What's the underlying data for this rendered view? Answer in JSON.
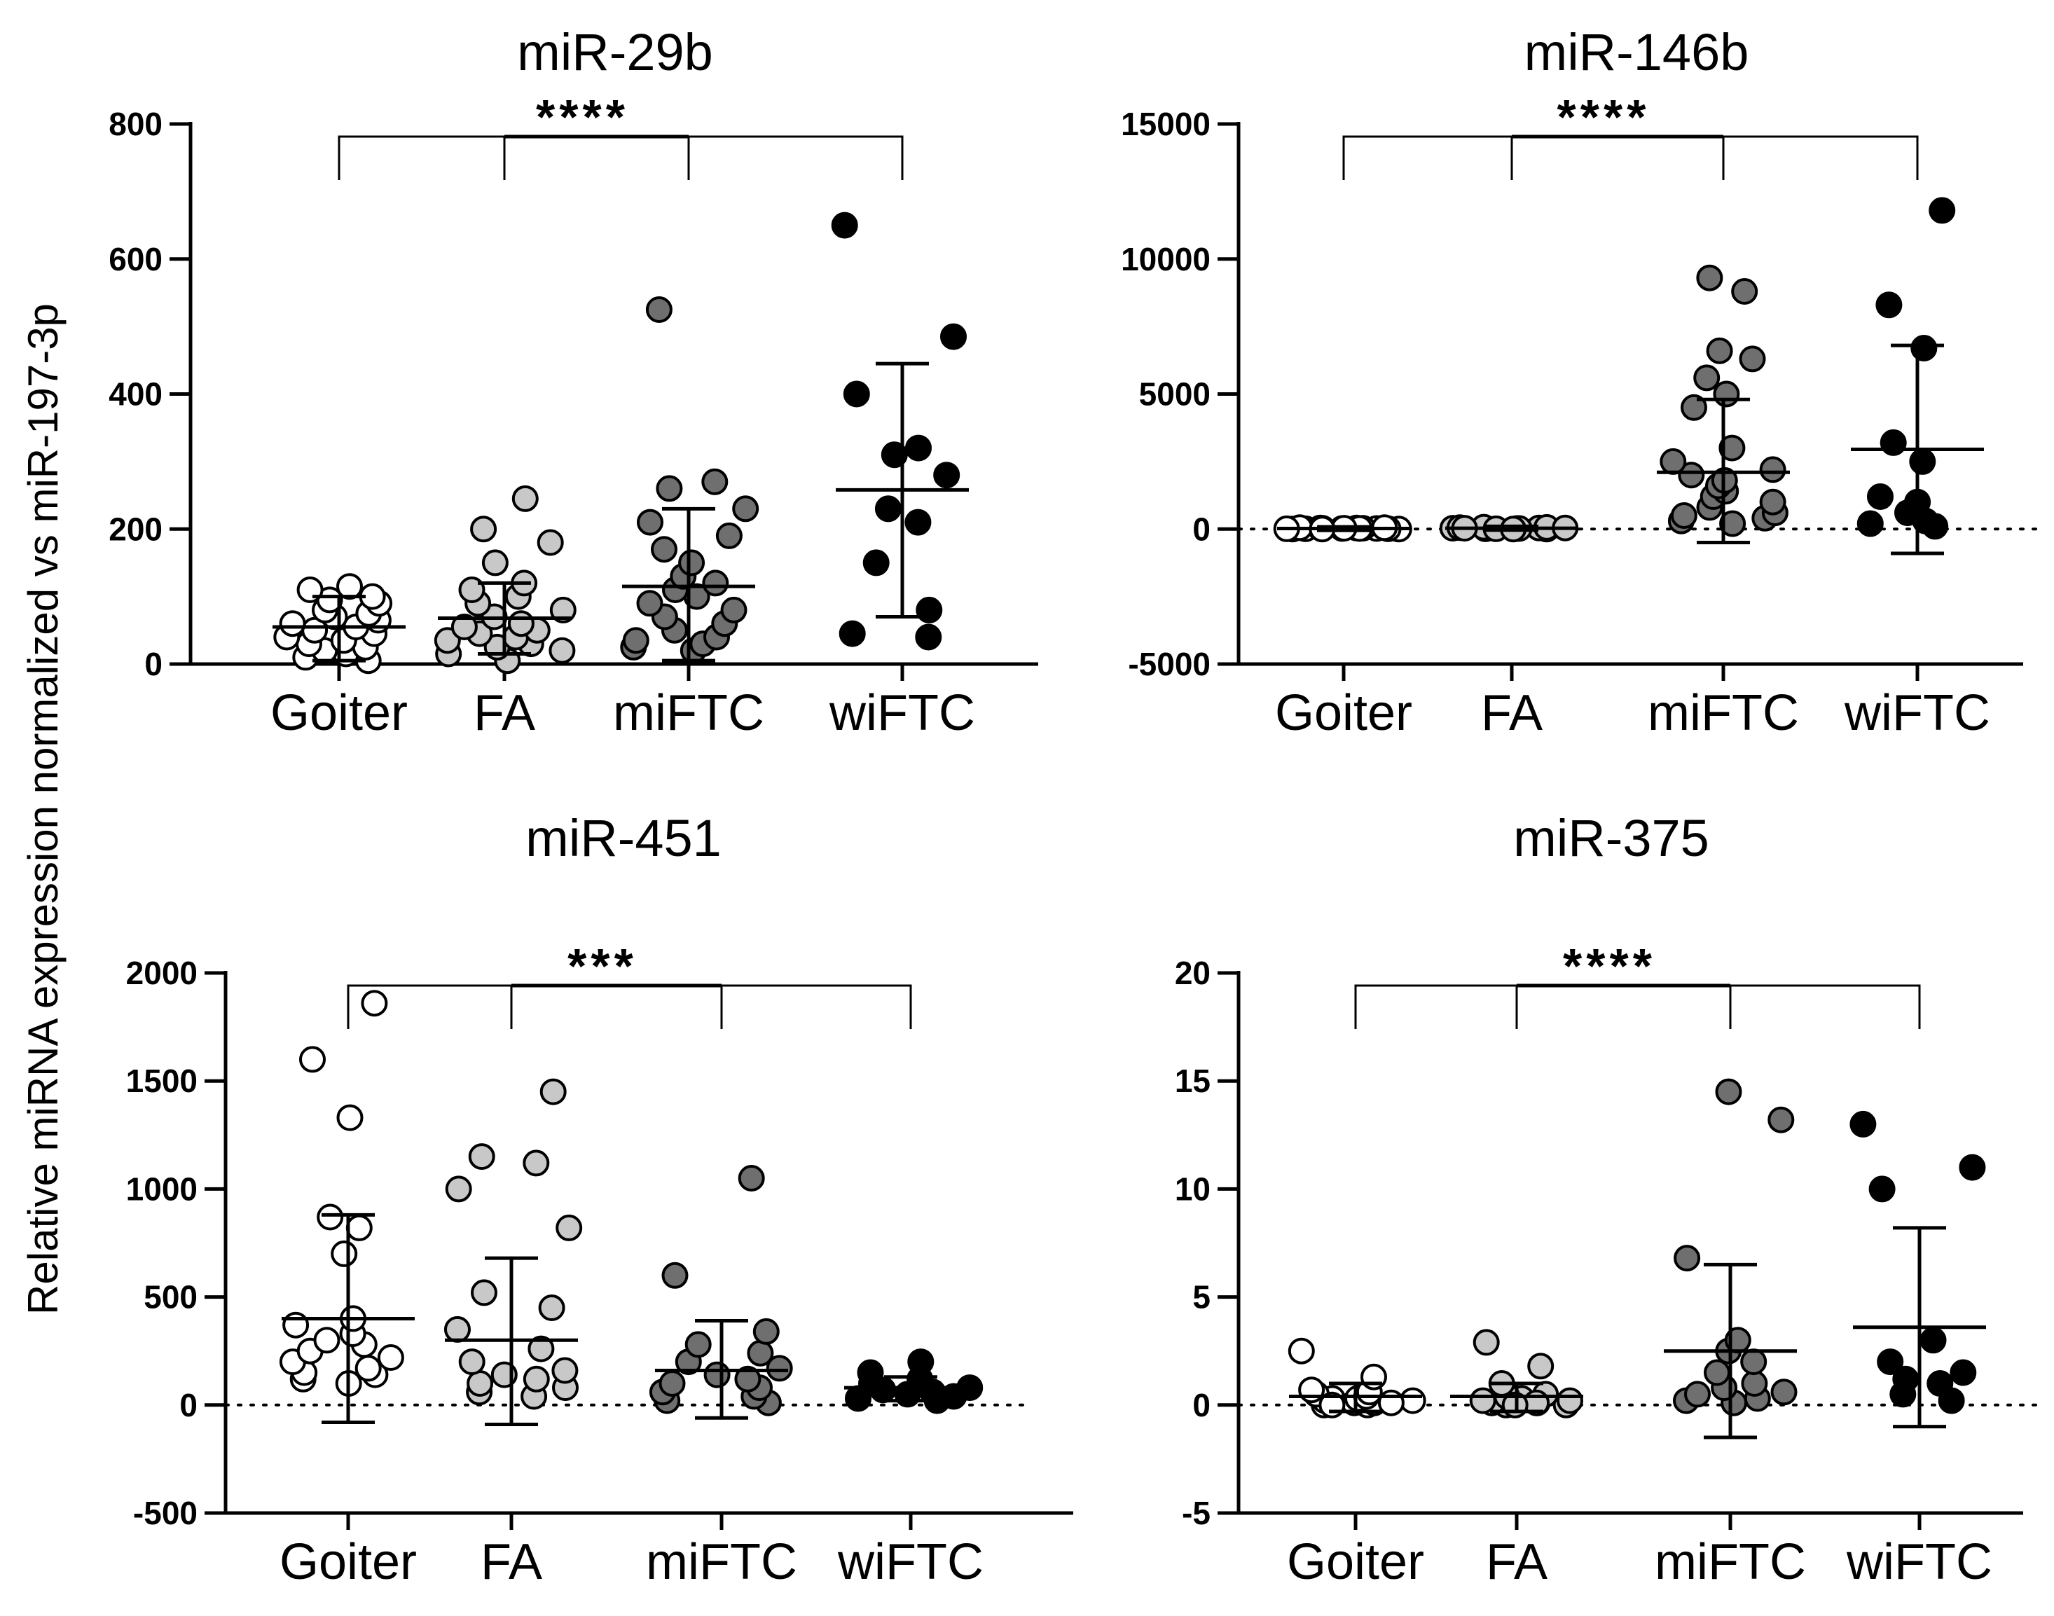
{
  "figure": {
    "ylabel": "Relative miRNA expression normalized vs miR-197-3p"
  },
  "colors": {
    "Goiter": "#ffffff",
    "FA": "#c8c8c8",
    "miFTC": "#6f6f6f",
    "wiFTC": "#000000",
    "stroke": "#000000"
  },
  "chart_data": [
    {
      "type": "scatter",
      "title": "miR-29b",
      "categories": [
        "Goiter",
        "FA",
        "miFTC",
        "wiFTC"
      ],
      "ylim": [
        0,
        800
      ],
      "yticks": [
        0,
        200,
        400,
        600,
        800
      ],
      "significance": "****",
      "series": [
        {
          "name": "Goiter",
          "mean": 55,
          "sd_low": 5,
          "sd_high": 100,
          "points": [
            5,
            10,
            15,
            20,
            25,
            30,
            35,
            40,
            45,
            50,
            55,
            60,
            65,
            70,
            75,
            80,
            90,
            95,
            100,
            110,
            115
          ]
        },
        {
          "name": "FA",
          "mean": 68,
          "sd_low": 15,
          "sd_high": 120,
          "points": [
            5,
            15,
            20,
            25,
            30,
            35,
            40,
            45,
            50,
            55,
            60,
            70,
            80,
            90,
            100,
            110,
            120,
            150,
            180,
            200,
            245
          ]
        },
        {
          "name": "miFTC",
          "mean": 115,
          "sd_low": 5,
          "sd_high": 230,
          "points": [
            20,
            25,
            30,
            35,
            40,
            50,
            60,
            70,
            80,
            90,
            100,
            110,
            120,
            130,
            150,
            170,
            190,
            210,
            230,
            260,
            270,
            525
          ]
        },
        {
          "name": "wiFTC",
          "mean": 258,
          "sd_low": 70,
          "sd_high": 445,
          "points": [
            40,
            45,
            80,
            150,
            210,
            230,
            280,
            310,
            320,
            400,
            485,
            650
          ]
        }
      ]
    },
    {
      "type": "scatter",
      "title": "miR-146b",
      "categories": [
        "Goiter",
        "FA",
        "miFTC",
        "wiFTC"
      ],
      "ylim": [
        -5000,
        15000
      ],
      "yticks": [
        -5000,
        0,
        5000,
        10000,
        15000
      ],
      "zero_line": true,
      "significance": "****",
      "series": [
        {
          "name": "Goiter",
          "mean": 20,
          "sd_low": -50,
          "sd_high": 80,
          "points": [
            0,
            0,
            10,
            10,
            20,
            20,
            30,
            30,
            40,
            40,
            50,
            50,
            20,
            10,
            30,
            0
          ]
        },
        {
          "name": "FA",
          "mean": 30,
          "sd_low": -40,
          "sd_high": 100,
          "points": [
            0,
            10,
            20,
            30,
            40,
            50,
            60,
            70,
            20,
            30,
            40,
            10,
            0
          ]
        },
        {
          "name": "miFTC",
          "mean": 2100,
          "sd_low": -500,
          "sd_high": 4800,
          "points": [
            200,
            300,
            400,
            500,
            600,
            800,
            1000,
            1200,
            1400,
            1600,
            1800,
            2000,
            2200,
            2500,
            3000,
            4500,
            5000,
            5600,
            6300,
            6600,
            8800,
            9300
          ]
        },
        {
          "name": "wiFTC",
          "mean": 2950,
          "sd_low": -900,
          "sd_high": 6800,
          "points": [
            100,
            200,
            300,
            600,
            1000,
            1200,
            2500,
            3200,
            6700,
            8300,
            11800
          ]
        }
      ]
    },
    {
      "type": "scatter",
      "title": "miR-451",
      "categories": [
        "Goiter",
        "FA",
        "miFTC",
        "wiFTC"
      ],
      "ylim": [
        -500,
        2000
      ],
      "yticks": [
        -500,
        0,
        500,
        1000,
        1500,
        2000
      ],
      "zero_line": true,
      "significance": "***",
      "series": [
        {
          "name": "Goiter",
          "mean": 400,
          "sd_low": -80,
          "sd_high": 880,
          "points": [
            100,
            120,
            140,
            150,
            170,
            200,
            220,
            250,
            280,
            300,
            330,
            370,
            400,
            700,
            820,
            870,
            1330,
            1600,
            1860
          ]
        },
        {
          "name": "FA",
          "mean": 300,
          "sd_low": -90,
          "sd_high": 680,
          "points": [
            40,
            60,
            80,
            100,
            120,
            140,
            160,
            200,
            260,
            350,
            450,
            520,
            820,
            1000,
            1120,
            1150,
            1450
          ]
        },
        {
          "name": "miFTC",
          "mean": 160,
          "sd_low": -60,
          "sd_high": 390,
          "points": [
            10,
            20,
            40,
            60,
            80,
            100,
            120,
            140,
            170,
            200,
            240,
            280,
            340,
            600,
            1050
          ]
        },
        {
          "name": "wiFTC",
          "mean": 80,
          "sd_low": 20,
          "sd_high": 130,
          "points": [
            20,
            30,
            40,
            50,
            60,
            70,
            80,
            100,
            120,
            150,
            200
          ]
        }
      ]
    },
    {
      "type": "scatter",
      "title": "miR-375",
      "categories": [
        "Goiter",
        "FA",
        "miFTC",
        "wiFTC"
      ],
      "ylim": [
        -5,
        20
      ],
      "yticks": [
        -5,
        0,
        5,
        10,
        15,
        20
      ],
      "zero_line": true,
      "significance": "****",
      "series": [
        {
          "name": "Goiter",
          "mean": 0.4,
          "sd_low": -0.3,
          "sd_high": 1.0,
          "points": [
            0,
            0,
            0.1,
            0.1,
            0.2,
            0.2,
            0.3,
            0.3,
            0.4,
            0.5,
            0.6,
            0.7,
            1.3,
            2.5,
            0.1,
            0
          ]
        },
        {
          "name": "FA",
          "mean": 0.4,
          "sd_low": -0.3,
          "sd_high": 1.0,
          "points": [
            0,
            0,
            0.1,
            0.1,
            0.2,
            0.2,
            0.3,
            0.4,
            0.5,
            1.0,
            1.8,
            2.9,
            0.1,
            0
          ]
        },
        {
          "name": "miFTC",
          "mean": 2.5,
          "sd_low": -1.5,
          "sd_high": 6.5,
          "points": [
            0.1,
            0.2,
            0.3,
            0.5,
            0.6,
            0.8,
            1.0,
            1.5,
            2.0,
            2.5,
            3.0,
            6.8,
            13.2,
            14.5
          ]
        },
        {
          "name": "wiFTC",
          "mean": 3.6,
          "sd_low": -1.0,
          "sd_high": 8.2,
          "points": [
            0.2,
            0.5,
            1.0,
            1.2,
            1.5,
            2.0,
            3.0,
            10.0,
            11.0,
            13.0
          ]
        }
      ]
    }
  ]
}
